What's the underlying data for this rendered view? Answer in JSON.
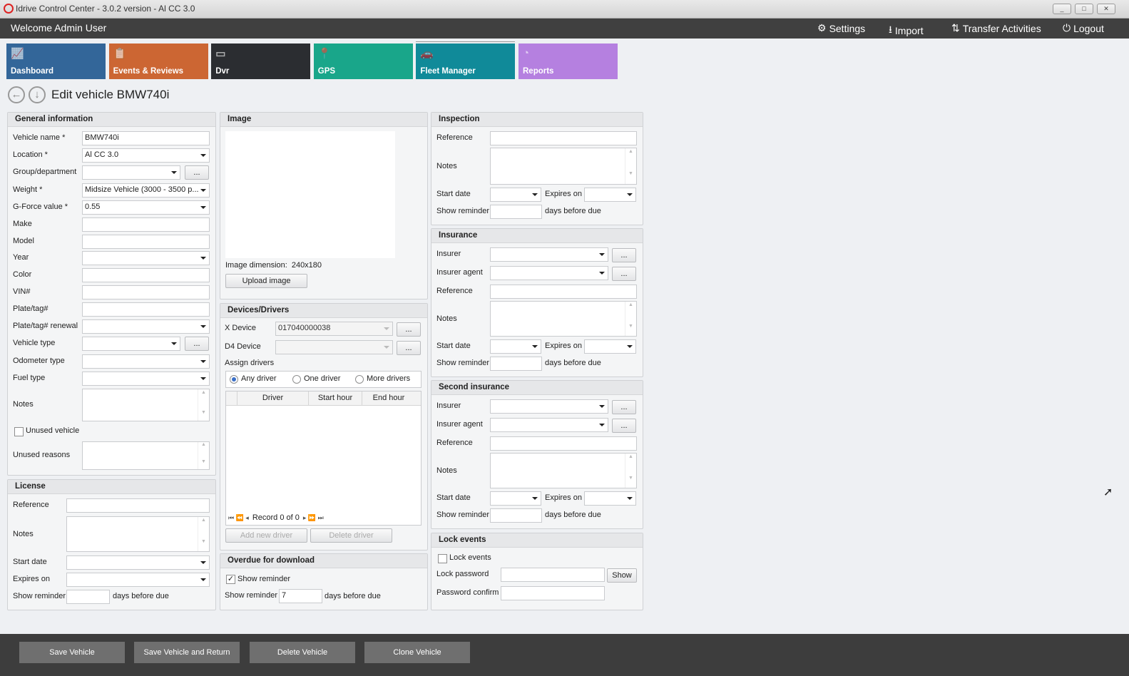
{
  "window": {
    "title": "Idrive Control Center - 3.0.2 version - Al CC 3.0",
    "minimize": "_",
    "maximize": "□",
    "close": "✕"
  },
  "topbar": {
    "welcome": "Welcome Admin User",
    "settings": "Settings",
    "import": "Import",
    "transfer": "Transfer Activities",
    "logout": "Logout"
  },
  "tiles": [
    {
      "label": "Dashboard",
      "color": "#336699",
      "icon": "chart-icon"
    },
    {
      "label": "Events & Reviews",
      "color": "#cc6633",
      "icon": "clipboard-icon"
    },
    {
      "label": "Dvr",
      "color": "#2b2d31",
      "icon": "dvr-icon"
    },
    {
      "label": "GPS",
      "color": "#19a68a",
      "icon": "map-pin-icon"
    },
    {
      "label": "Fleet Manager",
      "color": "#108a99",
      "icon": "cars-icon"
    },
    {
      "label": "Reports",
      "color": "#b580e0",
      "icon": "pie-chart-icon"
    }
  ],
  "page": {
    "title": "Edit vehicle BMW740i"
  },
  "general": {
    "title": "General information",
    "fields": [
      {
        "label": "Vehicle name *",
        "value": "BMW740i",
        "type": "text"
      },
      {
        "label": "Location *",
        "value": "Al CC 3.0",
        "type": "combo"
      },
      {
        "label": "Group/department",
        "value": "",
        "type": "combo-btn"
      },
      {
        "label": "Weight *",
        "value": "Midsize Vehicle (3000 - 3500 p...",
        "type": "combo"
      },
      {
        "label": "G-Force value *",
        "value": "0.55",
        "type": "combo"
      },
      {
        "label": "Make",
        "value": "",
        "type": "text"
      },
      {
        "label": "Model",
        "value": "",
        "type": "text"
      },
      {
        "label": "Year",
        "value": "",
        "type": "combo"
      },
      {
        "label": "Color",
        "value": "",
        "type": "text"
      },
      {
        "label": "VIN#",
        "value": "",
        "type": "text"
      },
      {
        "label": "Plate/tag#",
        "value": "",
        "type": "text"
      },
      {
        "label": "Plate/tag# renewal",
        "value": "",
        "type": "combo"
      },
      {
        "label": "Vehicle type",
        "value": "",
        "type": "combo-btn"
      },
      {
        "label": "Odometer type",
        "value": "",
        "type": "combo"
      },
      {
        "label": "Fuel type",
        "value": "",
        "type": "combo"
      }
    ],
    "notes_label": "Notes",
    "unused_label": "Unused vehicle",
    "unused_checked": false,
    "unused_reasons_label": "Unused reasons",
    "dots": "..."
  },
  "license": {
    "title": "License",
    "reference": "Reference",
    "notes": "Notes",
    "start_date": "Start date",
    "expires_on": "Expires on",
    "show_reminder": "Show reminder",
    "days_before": "days before due"
  },
  "image": {
    "title": "Image",
    "dimension_label": "Image dimension:",
    "dimension": "240x180",
    "upload": "Upload image"
  },
  "devices": {
    "title": "Devices/Drivers",
    "x_device": "X Device",
    "x_device_value": "017040000038",
    "d4_device": "D4 Device",
    "d4_device_value": "",
    "assign": "Assign drivers",
    "radios": [
      {
        "label": "Any driver",
        "checked": true
      },
      {
        "label": "One driver",
        "checked": false
      },
      {
        "label": "More drivers",
        "checked": false
      }
    ],
    "columns": [
      "Driver",
      "Start hour",
      "End hour"
    ],
    "record": "Record 0 of 0",
    "add": "Add new driver",
    "delete": "Delete driver"
  },
  "overdue": {
    "title": "Overdue for download",
    "show_reminder_check": "Show reminder",
    "checked": true,
    "show_reminder": "Show reminder",
    "value": "7",
    "days_before": "days before due"
  },
  "inspection": {
    "title": "Inspection",
    "reference": "Reference",
    "notes": "Notes",
    "start_date": "Start date",
    "expires_on": "Expires on",
    "show_reminder": "Show reminder",
    "days_before": "days before due"
  },
  "insurance": {
    "title": "Insurance",
    "insurer": "Insurer",
    "agent": "Insurer agent",
    "reference": "Reference",
    "notes": "Notes",
    "start_date": "Start date",
    "expires_on": "Expires on",
    "show_reminder": "Show reminder",
    "days_before": "days before due"
  },
  "insurance2": {
    "title": "Second insurance",
    "insurer": "Insurer",
    "agent": "Insurer agent",
    "reference": "Reference",
    "notes": "Notes",
    "start_date": "Start date",
    "expires_on": "Expires on",
    "show_reminder": "Show reminder",
    "days_before": "days before due"
  },
  "lock": {
    "title": "Lock events",
    "lock_label": "Lock events",
    "checked": false,
    "password": "Lock password",
    "show": "Show",
    "confirm": "Password confirm"
  },
  "footer": {
    "save": "Save Vehicle",
    "save_return": "Save Vehicle and Return",
    "delete": "Delete Vehicle",
    "clone": "Clone Vehicle"
  }
}
